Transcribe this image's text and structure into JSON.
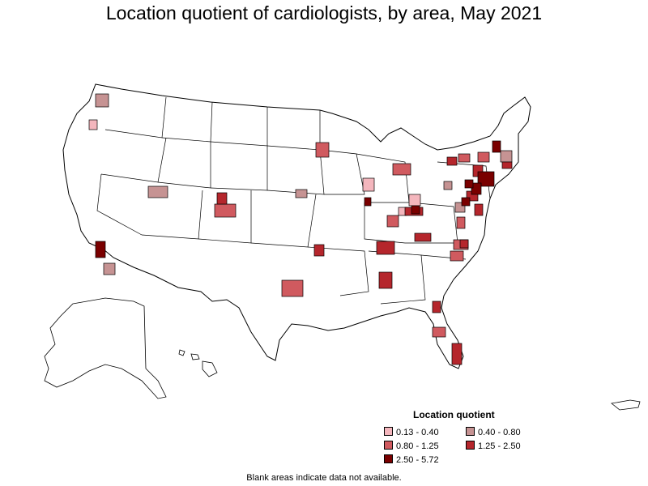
{
  "title": "Location quotient of cardiologists, by area, May 2021",
  "legend": {
    "title": "Location quotient",
    "items": [
      {
        "label": "0.13 - 0.40",
        "color": "#f4b6bd"
      },
      {
        "label": "0.40 - 0.80",
        "color": "#c69393"
      },
      {
        "label": "0.80 - 1.25",
        "color": "#d05a5f"
      },
      {
        "label": "1.25 - 2.50",
        "color": "#b5262c"
      },
      {
        "label": "2.50 - 5.72",
        "color": "#7a0000"
      }
    ]
  },
  "footnote": "Blank areas indicate data not available.",
  "colors": {
    "background": "#ffffff",
    "boundary": "#000000",
    "no_data": "#ffffff"
  }
}
